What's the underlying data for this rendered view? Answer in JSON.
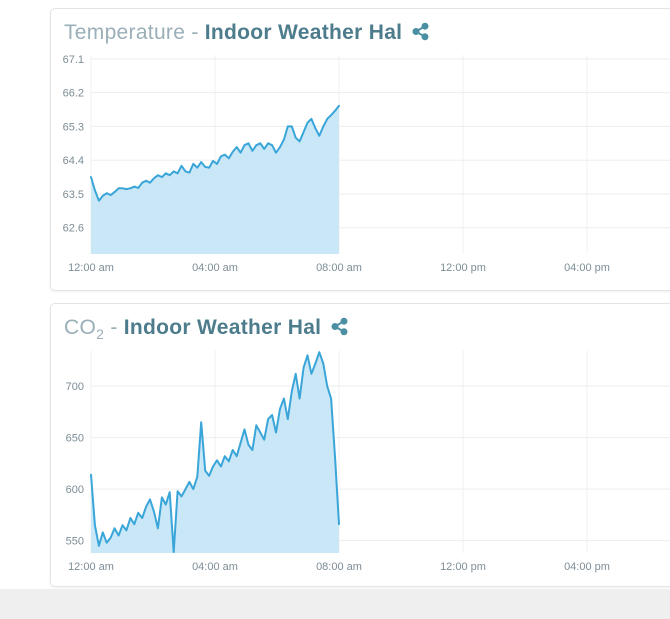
{
  "page": {
    "background": "#ffffff",
    "footer_background": "#efefef"
  },
  "colors": {
    "title_light": "#9aafb8",
    "title_bold": "#4d7c8d",
    "share_icon": "#4b8fa3",
    "axis_text": "#7d8d96",
    "grid_horizontal": "#ededed",
    "grid_vertical": "#f2f2f2",
    "line": "#3aa5d9",
    "fill": "#c9e7f6"
  },
  "panels": [
    {
      "title": {
        "light": "Temperature",
        "subscript": "",
        "separator": " - ",
        "bold": "Indoor Weather Hal"
      }
    },
    {
      "title": {
        "light": "CO",
        "subscript": "2",
        "separator": " - ",
        "bold": "Indoor Weather Hal"
      }
    }
  ],
  "chart_data": [
    {
      "type": "area",
      "title": "Temperature - Indoor Weather Hal",
      "xlabel": "",
      "ylabel": "",
      "grid": true,
      "legend": "none",
      "y_ticks": [
        62.6,
        63.5,
        64.4,
        65.3,
        66.2,
        67.1
      ],
      "ylim": [
        61.9,
        67.31
      ],
      "x_ticks": [
        {
          "hour": 0,
          "label": "12:00 am"
        },
        {
          "hour": 4,
          "label": "04:00 am"
        },
        {
          "hour": 8,
          "label": "08:00 am"
        },
        {
          "hour": 12,
          "label": "12:00 pm"
        },
        {
          "hour": 16,
          "label": "04:00 pm"
        }
      ],
      "x_span_hours": [
        0,
        8
      ],
      "line_color": "#3aa5d9",
      "fill_color": "#c9e7f6",
      "values": [
        63.95,
        63.6,
        63.32,
        63.45,
        63.52,
        63.47,
        63.55,
        63.65,
        63.65,
        63.63,
        63.65,
        63.7,
        63.66,
        63.8,
        63.85,
        63.8,
        63.92,
        64.0,
        63.95,
        64.05,
        64.0,
        64.1,
        64.05,
        64.25,
        64.1,
        64.07,
        64.3,
        64.2,
        64.35,
        64.22,
        64.2,
        64.38,
        64.3,
        64.5,
        64.55,
        64.45,
        64.62,
        64.75,
        64.6,
        64.8,
        64.85,
        64.65,
        64.8,
        64.85,
        64.7,
        64.85,
        64.8,
        64.6,
        64.75,
        64.95,
        65.3,
        65.3,
        65.0,
        64.9,
        65.15,
        65.4,
        65.5,
        65.25,
        65.05,
        65.3,
        65.5,
        65.6,
        65.72,
        65.85
      ]
    },
    {
      "type": "area",
      "title": "CO2 - Indoor Weather Hal",
      "xlabel": "",
      "ylabel": "",
      "grid": true,
      "legend": "none",
      "y_ticks": [
        550,
        600,
        650,
        700
      ],
      "ylim": [
        538,
        739
      ],
      "x_ticks": [
        {
          "hour": 0,
          "label": "12:00 am"
        },
        {
          "hour": 4,
          "label": "04:00 am"
        },
        {
          "hour": 8,
          "label": "08:00 am"
        },
        {
          "hour": 12,
          "label": "12:00 pm"
        },
        {
          "hour": 16,
          "label": "04:00 pm"
        }
      ],
      "x_span_hours": [
        0,
        8
      ],
      "line_color": "#3aa5d9",
      "fill_color": "#c9e7f6",
      "values": [
        614,
        565,
        545,
        558,
        548,
        553,
        562,
        555,
        565,
        560,
        572,
        566,
        577,
        572,
        583,
        590,
        578,
        562,
        592,
        585,
        597,
        539,
        598,
        593,
        600,
        607,
        600,
        612,
        665,
        618,
        613,
        622,
        628,
        622,
        632,
        627,
        638,
        632,
        645,
        658,
        643,
        638,
        662,
        655,
        648,
        668,
        672,
        655,
        678,
        688,
        668,
        695,
        712,
        688,
        718,
        730,
        712,
        722,
        733,
        722,
        700,
        688,
        630,
        566
      ]
    }
  ]
}
